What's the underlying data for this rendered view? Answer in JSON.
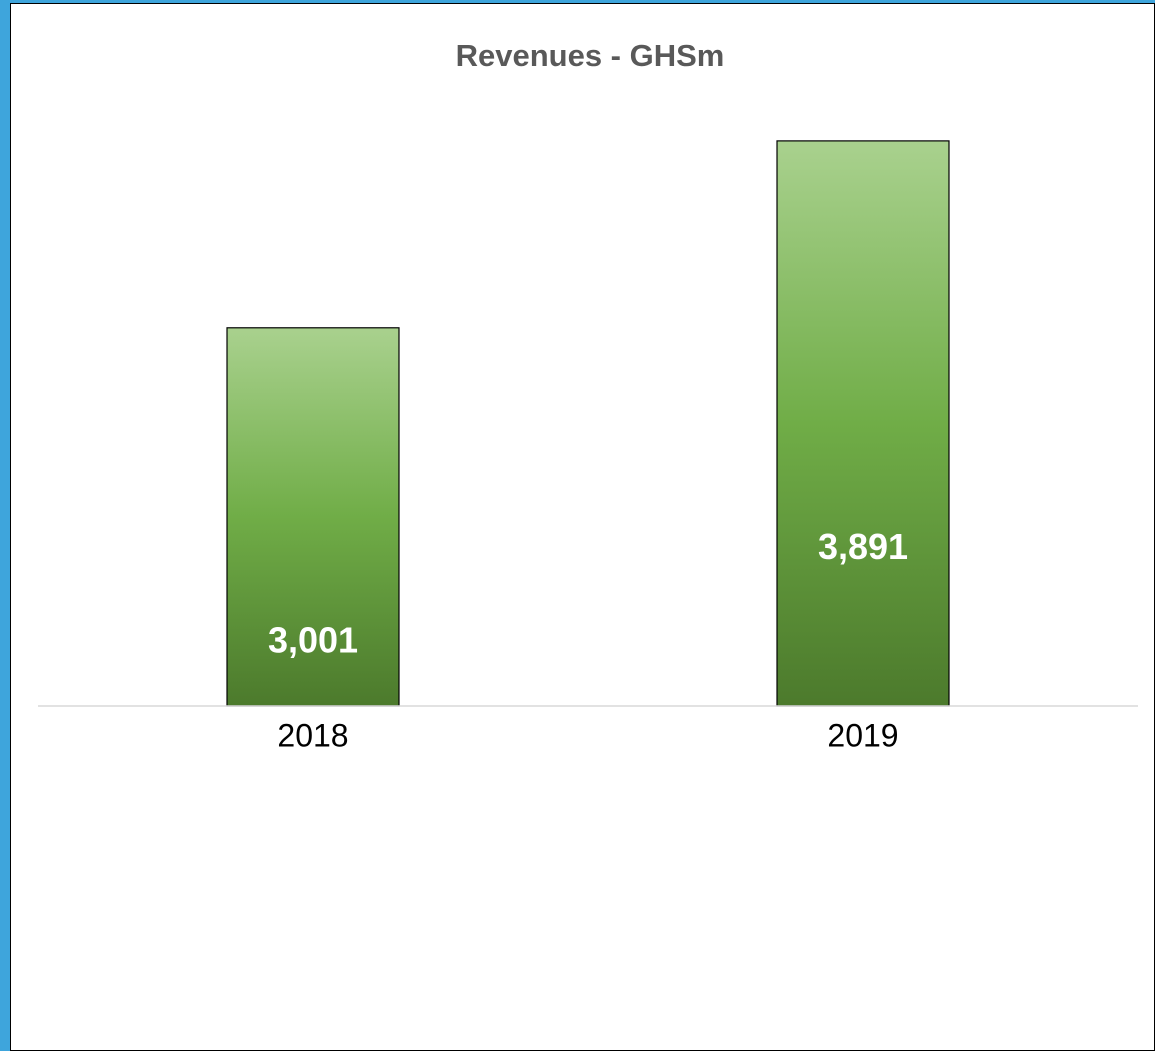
{
  "chart_data": {
    "type": "bar",
    "title": "Revenues - GHSm",
    "categories": [
      "2018",
      "2019"
    ],
    "values": [
      3001,
      3891
    ],
    "value_labels": [
      "3,001",
      "3,891"
    ],
    "color": "#70ad47",
    "ylim": [
      1200,
      4000
    ]
  }
}
